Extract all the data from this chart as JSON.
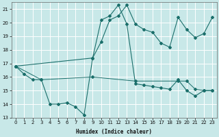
{
  "background_color": "#c8e8e8",
  "grid_color": "#ffffff",
  "line_color": "#1a6e6a",
  "x_min": -0.5,
  "x_max": 23.5,
  "y_min": 13,
  "y_max": 21.5,
  "xlabel": "Humidex (Indice chaleur)",
  "yticks": [
    13,
    14,
    15,
    16,
    17,
    18,
    19,
    20,
    21
  ],
  "xticks": [
    0,
    1,
    2,
    3,
    4,
    5,
    6,
    7,
    8,
    9,
    10,
    11,
    12,
    13,
    14,
    15,
    16,
    17,
    18,
    19,
    20,
    21,
    22,
    23
  ],
  "line1_x": [
    0,
    1,
    2,
    3,
    4,
    5,
    6,
    7,
    8,
    9,
    10,
    11,
    12,
    13,
    14,
    15,
    16,
    17,
    18,
    19,
    20,
    21,
    22,
    23
  ],
  "line1_y": [
    16.8,
    16.2,
    15.8,
    15.8,
    14.0,
    14.0,
    14.1,
    13.8,
    13.2,
    17.4,
    20.2,
    20.5,
    21.3,
    19.9,
    15.5,
    15.4,
    15.3,
    15.2,
    15.1,
    15.8,
    15.0,
    14.6,
    15.0,
    15.0
  ],
  "line2_x": [
    0,
    9,
    10,
    11,
    12,
    13,
    14,
    15,
    16,
    17,
    18,
    19,
    20,
    21,
    22,
    23
  ],
  "line2_y": [
    16.8,
    17.4,
    18.6,
    20.2,
    20.5,
    21.3,
    19.9,
    19.5,
    19.3,
    18.5,
    18.2,
    20.4,
    19.5,
    18.9,
    19.2,
    20.4
  ],
  "line3_x": [
    0,
    3,
    9,
    14,
    19,
    20,
    21,
    22,
    23
  ],
  "line3_y": [
    16.8,
    15.8,
    16.0,
    15.7,
    15.7,
    15.7,
    15.1,
    15.0,
    15.0
  ]
}
